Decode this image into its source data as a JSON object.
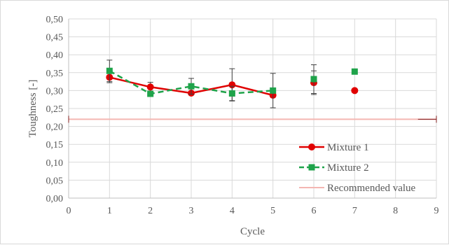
{
  "chart_data": {
    "type": "scatter",
    "title": "",
    "xlabel": "Cycle",
    "ylabel": "Toughness [-]",
    "xlim": [
      0,
      9
    ],
    "ylim": [
      0,
      0.5
    ],
    "x_ticks": [
      "0",
      "1",
      "2",
      "3",
      "4",
      "5",
      "6",
      "7",
      "8",
      "9"
    ],
    "y_ticks": [
      "0,00",
      "0,05",
      "0,10",
      "0,15",
      "0,20",
      "0,25",
      "0,30",
      "0,35",
      "0,40",
      "0,45",
      "0,50"
    ],
    "grid": {
      "vertical": true,
      "horizontal": true
    },
    "legend_position": "bottom-right",
    "series": [
      {
        "name": "Mixture 1",
        "color": "#e00000",
        "marker": "circle",
        "line_style": "solid",
        "points": [
          {
            "x": 1,
            "y": 0.337,
            "err": 0.015
          },
          {
            "x": 2,
            "y": 0.31,
            "err": 0.013
          },
          {
            "x": 3,
            "y": 0.293,
            "err": 0.0
          },
          {
            "x": 4,
            "y": 0.316,
            "err": 0.045
          },
          {
            "x": 5,
            "y": 0.287,
            "err": 0.0
          },
          {
            "x": 6,
            "y": 0.322,
            "err": 0.033
          },
          {
            "x": 7,
            "y": 0.3,
            "err": 0.0
          }
        ],
        "connected_through_x": 5
      },
      {
        "name": "Mixture 2",
        "color": "#1fa34a",
        "marker": "square",
        "line_style": "dashed",
        "points": [
          {
            "x": 1,
            "y": 0.355,
            "err": 0.03
          },
          {
            "x": 2,
            "y": 0.291,
            "err": 0.0
          },
          {
            "x": 3,
            "y": 0.312,
            "err": 0.022
          },
          {
            "x": 4,
            "y": 0.292,
            "err": 0.02
          },
          {
            "x": 5,
            "y": 0.3,
            "err": 0.048
          },
          {
            "x": 6,
            "y": 0.332,
            "err": 0.04
          },
          {
            "x": 7,
            "y": 0.353,
            "err": 0.0
          }
        ],
        "connected_through_x": 5
      },
      {
        "name": "Recommended value",
        "color": "#f4b6b2",
        "type": "hline",
        "y": 0.22,
        "x_range": [
          0,
          9
        ],
        "err_color": "#7f1f1f"
      }
    ]
  }
}
